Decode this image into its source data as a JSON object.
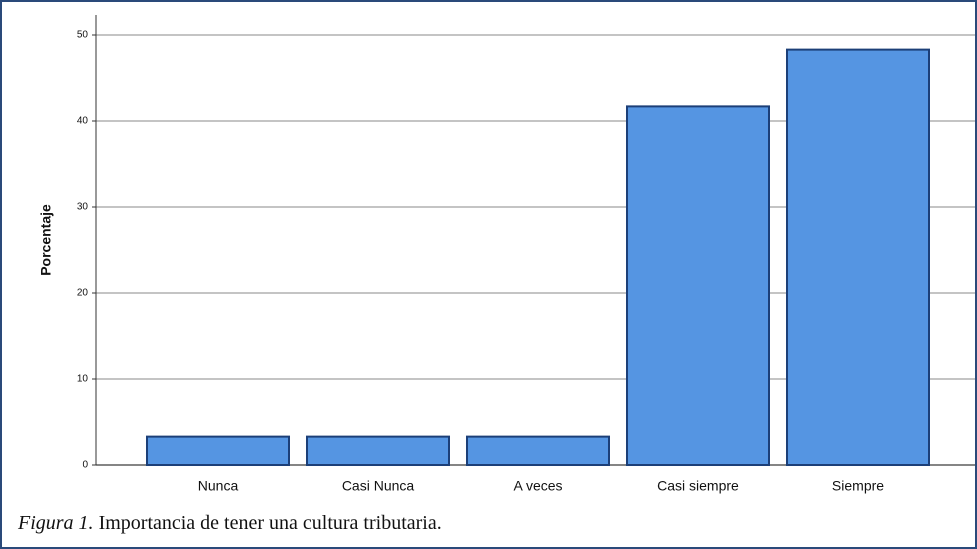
{
  "chart_data": {
    "type": "bar",
    "y_label": "Porcentaje",
    "categories": [
      "Nunca",
      "Casi Nunca",
      "A veces",
      "Casi siempre",
      "Siempre"
    ],
    "values": [
      3.3,
      3.3,
      3.3,
      41.7,
      48.3
    ],
    "color": "#5595e2",
    "ylim": [
      0,
      50
    ],
    "yticks": [
      0,
      10,
      20,
      30,
      40,
      50
    ],
    "grid": true,
    "caption_label": "Figura 1.",
    "caption": "Importancia de tener una cultura tributaria."
  }
}
